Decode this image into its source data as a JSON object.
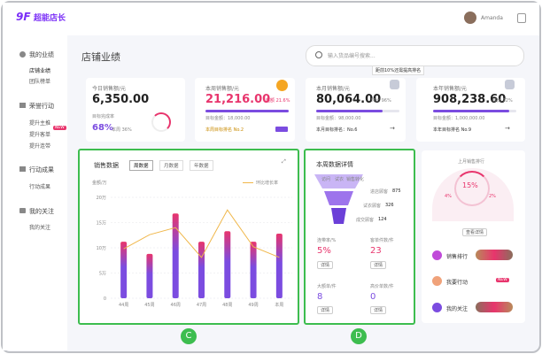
{
  "header": {
    "logo": "超能店长",
    "user": "Amanda"
  },
  "sidebar": [
    {
      "title": "我的业绩",
      "items": [
        "店铺业绩",
        "团队榜单"
      ]
    },
    {
      "title": "荣誉行动",
      "items": [
        "提升主推",
        "提升客单",
        "提升连带"
      ],
      "badge": "NEW"
    },
    {
      "title": "行动成果",
      "items": [
        "行动成果"
      ]
    },
    {
      "title": "我的关注",
      "items": [
        "我的关注"
      ]
    }
  ],
  "page_title": "店铺业绩",
  "search_placeholder": "输入货品编号搜索...",
  "tooltip": "距前10%还需提高排名",
  "cards": [
    {
      "label": "今日销售额/元",
      "value": "6,350.00",
      "sub": "目标完成率",
      "rate": "68%",
      "note": "本周 36%"
    },
    {
      "label": "本周销售额/元",
      "value": "21,216.00",
      "badge": "超额 21.6%",
      "target": "目标金额：18,000.00",
      "rank": "本周目标排名 No.2"
    },
    {
      "label": "本月销售额/元",
      "value": "80,064.00",
      "badge": "环比 96%",
      "target": "目标金额：98,000.00",
      "rank": "本月目标排名：No.6"
    },
    {
      "label": "本年销售额/元",
      "value": "908,238.60",
      "badge": "环比 92%",
      "target": "目标金额：1,000,000.00",
      "rank": "本年目标排名 No.9"
    }
  ],
  "sales_chart": {
    "type": "bar",
    "title": "销售数据",
    "tabs": [
      "周数据",
      "月数据",
      "年数据"
    ],
    "y_label": "金额/万",
    "legend": "环比增长率",
    "categories": [
      "44周",
      "45周",
      "46周",
      "47周",
      "48周",
      "49周",
      "本周"
    ],
    "values": [
      11.2,
      8.8,
      16.8,
      11.2,
      13.3,
      11.2,
      12.8
    ],
    "line_values": [
      9.8,
      12.6,
      14,
      8.1,
      17.5,
      10.2,
      8.1
    ],
    "ylim": [
      0,
      20
    ],
    "yticks": [
      0,
      {
        "value": 5,
        "label": "5万"
      },
      {
        "value": 10,
        "label": "10万"
      },
      {
        "value": 15,
        "label": "15万"
      },
      {
        "value": 20,
        "label": "20万"
      }
    ],
    "bar_color": "#7b4ce0",
    "top_color": "#e8356d",
    "line_color": "#f0b74a",
    "grid": true
  },
  "weekly": {
    "title": "本周数据详情",
    "funnel": [
      "访问",
      "试衣",
      "销售转化"
    ],
    "stats": [
      {
        "label": "进店顾客",
        "value": "875"
      },
      {
        "label": "试衣顾客",
        "value": "326"
      },
      {
        "label": "成交顾客",
        "value": "124"
      }
    ],
    "metrics": [
      {
        "label": "连带率/%",
        "value": "5%"
      },
      {
        "label": "客单件数/件",
        "value": "23"
      },
      {
        "label": "大额单/件",
        "value": "8"
      },
      {
        "label": "高价单数/件",
        "value": "0"
      }
    ],
    "detail": "详情"
  },
  "rank": {
    "title": "上月销售排行",
    "center": "15%",
    "left": "4%",
    "right": "2%",
    "button": "查看详情",
    "links": [
      "销售排行",
      "我要行动",
      "我的关注"
    ],
    "badge": "NEW"
  },
  "markers": [
    "C",
    "D"
  ]
}
